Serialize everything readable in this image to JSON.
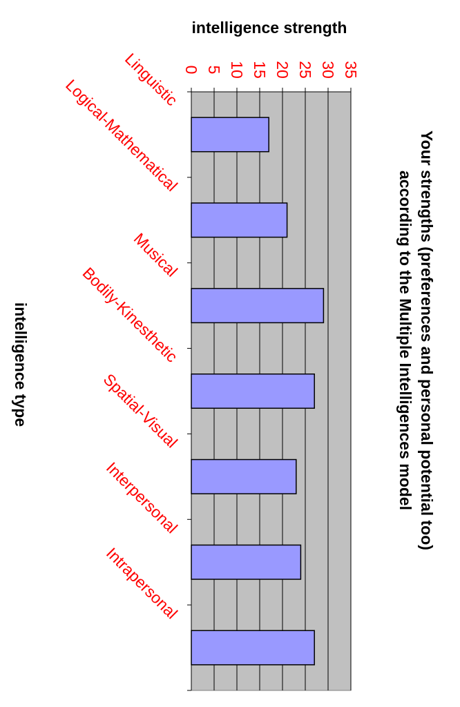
{
  "chart_data": {
    "type": "bar",
    "orientation": "horizontal",
    "title_lines": [
      "Your strengths (preferences and personal potential too)",
      "according to the Multiple Intelligences model"
    ],
    "xlabel": "intelligence type",
    "ylabel": "intelligence strength",
    "categories": [
      "Linguistic",
      "Logical-Mathematical",
      "Musical",
      "Bodily-Kinesthetic",
      "Spatial-Visual",
      "Interpersonal",
      "Intrapersonal"
    ],
    "values": [
      17,
      21,
      29,
      27,
      23,
      24,
      27
    ],
    "ylim": [
      0,
      35
    ],
    "ticks": [
      "0",
      "5",
      "10",
      "15",
      "20",
      "25",
      "30",
      "35"
    ],
    "grid": true,
    "legend": false,
    "colors": {
      "bar_fill": "#9999ff",
      "bar_stroke": "#000000",
      "plot_background": "#c0c0c0",
      "label_color": "#ff0000",
      "gridline": "#000000"
    }
  }
}
